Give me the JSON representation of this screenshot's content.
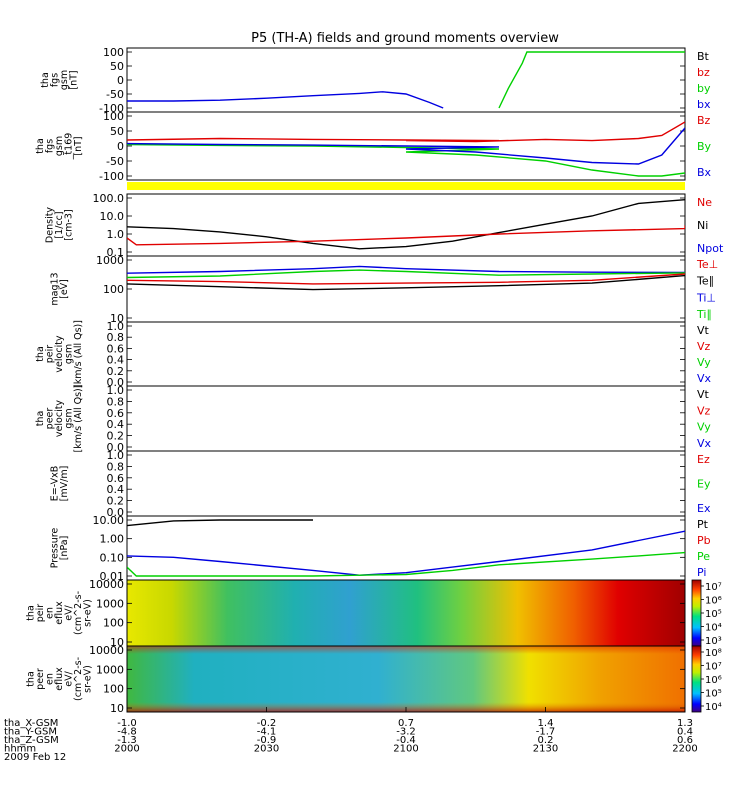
{
  "title": "P5 (TH-A) fields and ground moments overview",
  "date_label": "2009 Feb 12",
  "orbit_rows": [
    {
      "label": "tha_X-GSM",
      "values": [
        "-1.0",
        "-0.2",
        "0.7",
        "1.4",
        "1.3"
      ]
    },
    {
      "label": "tha_Y-GSM",
      "values": [
        "-4.8",
        "-4.1",
        "-3.2",
        "-1.7",
        "0.4"
      ]
    },
    {
      "label": "tha_Z-GSM",
      "values": [
        "-1.3",
        "-0.9",
        "-0.4",
        "0.2",
        "0.6"
      ]
    },
    {
      "label": "hhmm",
      "values": [
        "2000",
        "2030",
        "2100",
        "2130",
        "2200"
      ]
    }
  ],
  "colors": {
    "black": "#000000",
    "red": "#e00000",
    "green": "#00d000",
    "blue": "#0000e0",
    "yellow": "#ffff00"
  },
  "chart_data": [
    {
      "id": "fgs",
      "type": "line",
      "ylabel": [
        "tha",
        "fgs",
        "gsm",
        "[nT]"
      ],
      "ticks": [
        "100",
        "50",
        "0",
        "-50",
        "-100"
      ],
      "ylim": [
        -100,
        100
      ],
      "legend": [
        {
          "text": "Bt",
          "color": "#000000"
        },
        {
          "text": "bz",
          "color": "#e00000"
        },
        {
          "text": "by",
          "color": "#00d000"
        },
        {
          "text": "bx",
          "color": "#0000e0"
        }
      ],
      "series": [
        {
          "name": "bx",
          "color": "#0000e0",
          "x": [
            2000,
            2010,
            2020,
            2030,
            2040,
            2050,
            2055,
            2100,
            2105,
            2108
          ],
          "y": [
            -75,
            -75,
            -72,
            -65,
            -56,
            -48,
            -42,
            -50,
            -80,
            -100
          ]
        },
        {
          "name": "by",
          "color": "#00d000",
          "x": [
            2120,
            2122,
            2125,
            2126,
            2200
          ],
          "y": [
            -100,
            -30,
            60,
            100,
            100
          ]
        }
      ]
    },
    {
      "id": "fgs_gsm",
      "type": "line",
      "ylabel": [
        "tha",
        "fgs",
        "gsm",
        "_t169",
        "[nT]"
      ],
      "ticks": [
        "100",
        "50",
        "0",
        "-50",
        "-100"
      ],
      "ylim": [
        -100,
        100
      ],
      "legend": [
        {
          "text": "Bz",
          "color": "#e00000"
        },
        {
          "text": "By",
          "color": "#00d000"
        },
        {
          "text": "Bx",
          "color": "#0000e0"
        }
      ],
      "series": [
        {
          "name": "Bz",
          "color": "#e00000",
          "x": [
            2000,
            2020,
            2040,
            2060,
            2080,
            2100,
            2115,
            2130,
            2140,
            2150,
            2155,
            2200
          ],
          "y": [
            20,
            25,
            22,
            20,
            18,
            18,
            15,
            22,
            18,
            25,
            35,
            80
          ]
        },
        {
          "name": "By",
          "color": "#00d000",
          "x": [
            2000,
            2020,
            2040,
            2060,
            2080,
            2100,
            2115,
            2130,
            2140,
            2150,
            2155,
            2200
          ],
          "y": [
            5,
            2,
            0,
            -5,
            -10,
            -20,
            -30,
            -50,
            -80,
            -100,
            -100,
            -90
          ]
        },
        {
          "name": "Bx",
          "color": "#0000e0",
          "x": [
            2000,
            2020,
            2040,
            2060,
            2080,
            2100,
            2115,
            2130,
            2140,
            2150,
            2155,
            2200
          ],
          "y": [
            8,
            5,
            3,
            0,
            -3,
            -10,
            -20,
            -40,
            -55,
            -60,
            -30,
            60
          ]
        }
      ]
    },
    {
      "id": "density",
      "type": "line",
      "ylog": true,
      "ylabel": [
        "Density",
        "[1/cc]",
        "[cm-3]"
      ],
      "ticks": [
        "100.0",
        "10.0",
        "1.0",
        "0.1"
      ],
      "ylim": [
        0.1,
        100
      ],
      "legend": [
        {
          "text": "Ne",
          "color": "#e00000"
        },
        {
          "text": "Ni",
          "color": "#000000"
        },
        {
          "text": "Npot",
          "color": "#0000e0"
        }
      ],
      "series": [
        {
          "name": "Ni",
          "color": "#000000",
          "x": [
            2000,
            2010,
            2020,
            2030,
            2040,
            2050,
            2100,
            2110,
            2120,
            2130,
            2140,
            2150,
            2200
          ],
          "y": [
            2.5,
            2.0,
            1.3,
            0.7,
            0.3,
            0.15,
            0.2,
            0.4,
            1.2,
            3.5,
            10,
            50,
            80
          ]
        },
        {
          "name": "Ne",
          "color": "#e00000",
          "x": [
            2000,
            2002,
            2020,
            2040,
            2100,
            2120,
            2140,
            2160,
            2200
          ],
          "y": [
            0.6,
            0.25,
            0.3,
            0.4,
            0.6,
            1.0,
            1.5,
            2.0,
            3.0
          ]
        }
      ]
    },
    {
      "id": "temperature",
      "type": "line",
      "ylog": true,
      "ylabel": [
        "mag13",
        "[eV]"
      ],
      "ticks": [
        "1000",
        "100",
        "10"
      ],
      "ylim": [
        10,
        1000
      ],
      "legend": [
        {
          "text": "Te⊥",
          "color": "#e00000"
        },
        {
          "text": "Te∥",
          "color": "#000000"
        },
        {
          "text": "Ti⊥",
          "color": "#0000e0"
        },
        {
          "text": "Ti∥",
          "color": "#00d000"
        }
      ],
      "series": [
        {
          "name": "Ti⊥",
          "color": "#0000e0",
          "x": [
            2000,
            2020,
            2040,
            2050,
            2100,
            2120,
            2140,
            2200
          ],
          "y": [
            350,
            400,
            500,
            600,
            500,
            400,
            380,
            370
          ]
        },
        {
          "name": "Ti∥",
          "color": "#00d000",
          "x": [
            2000,
            2020,
            2040,
            2050,
            2100,
            2120,
            2140,
            2200
          ],
          "y": [
            250,
            280,
            400,
            450,
            400,
            300,
            330,
            360
          ]
        },
        {
          "name": "Te⊥",
          "color": "#e00000",
          "x": [
            2000,
            2020,
            2040,
            2100,
            2120,
            2140,
            2200
          ],
          "y": [
            200,
            180,
            150,
            160,
            170,
            200,
            330
          ]
        },
        {
          "name": "Te∥",
          "color": "#000000",
          "x": [
            2000,
            2020,
            2040,
            2100,
            2120,
            2140,
            2200
          ],
          "y": [
            150,
            120,
            95,
            110,
            130,
            160,
            290
          ]
        }
      ]
    },
    {
      "id": "peir_velocity",
      "type": "line",
      "ylabel": [
        "tha",
        "peir",
        "velocity",
        "gsm",
        "[km/s (All Qs)]"
      ],
      "ticks": [
        "1.0",
        "0.8",
        "0.6",
        "0.4",
        "0.2",
        "0.0"
      ],
      "ylim": [
        0,
        1
      ],
      "legend": [
        {
          "text": "Vt",
          "color": "#000000"
        },
        {
          "text": "Vz",
          "color": "#e00000"
        },
        {
          "text": "Vy",
          "color": "#00d000"
        },
        {
          "text": "Vx",
          "color": "#0000e0"
        }
      ],
      "series": []
    },
    {
      "id": "peer_velocity",
      "type": "line",
      "ylabel": [
        "tha",
        "peer",
        "velocity",
        "gsm",
        "[km/s (All Qs)]"
      ],
      "ticks": [
        "1.0",
        "0.8",
        "0.6",
        "0.4",
        "0.2",
        "0.0"
      ],
      "ylim": [
        0,
        1
      ],
      "legend": [
        {
          "text": "Vt",
          "color": "#000000"
        },
        {
          "text": "Vz",
          "color": "#e00000"
        },
        {
          "text": "Vy",
          "color": "#00d000"
        },
        {
          "text": "Vx",
          "color": "#0000e0"
        }
      ],
      "series": []
    },
    {
      "id": "efield",
      "type": "line",
      "ylabel": [
        "E=-VxB",
        "[mV/m]"
      ],
      "ticks": [
        "1.0",
        "0.8",
        "0.6",
        "0.4",
        "0.2",
        "0.0"
      ],
      "ylim": [
        0,
        1
      ],
      "legend": [
        {
          "text": "Ez",
          "color": "#e00000"
        },
        {
          "text": "Ey",
          "color": "#00d000"
        },
        {
          "text": "Ex",
          "color": "#0000e0"
        }
      ],
      "series": []
    },
    {
      "id": "pressure",
      "type": "line",
      "ylog": true,
      "ylabel": [
        "Pressure",
        "[nPa]"
      ],
      "ticks": [
        "10.00",
        "1.00",
        "0.10",
        "0.01"
      ],
      "ylim": [
        0.01,
        10
      ],
      "legend": [
        {
          "text": "Pt",
          "color": "#000000"
        },
        {
          "text": "Pb",
          "color": "#e00000"
        },
        {
          "text": "Pe",
          "color": "#00d000"
        },
        {
          "text": "Pi",
          "color": "#0000e0"
        }
      ],
      "series": [
        {
          "name": "Pt",
          "color": "#000000",
          "x": [
            2000,
            2010,
            2020,
            2030,
            2040
          ],
          "y": [
            5,
            9,
            11,
            12,
            12
          ]
        },
        {
          "name": "Pi",
          "color": "#0000e0",
          "x": [
            2000,
            2010,
            2020,
            2040,
            2050,
            2100,
            2110,
            2120,
            2140,
            2150,
            2200
          ],
          "y": [
            0.12,
            0.1,
            0.06,
            0.02,
            0.011,
            0.015,
            0.03,
            0.06,
            0.25,
            0.8,
            2.5
          ]
        },
        {
          "name": "Pe",
          "color": "#00d000",
          "x": [
            2000,
            2002,
            2010,
            2040,
            2050,
            2100,
            2110,
            2120,
            2140,
            2150,
            2200
          ],
          "y": [
            0.03,
            0.01,
            0.01,
            0.01,
            0.011,
            0.012,
            0.02,
            0.04,
            0.08,
            0.12,
            0.18
          ]
        }
      ]
    },
    {
      "id": "peir_spec",
      "type": "heatmap",
      "ylabel": [
        "tha",
        "peir",
        "en",
        "eflux",
        "eV/",
        "(cm^2-s-",
        "sr-eV)"
      ],
      "ticks": [
        "10000",
        "1000",
        "100",
        "10"
      ],
      "colorbar": [
        "10⁷",
        "10⁶",
        "10⁵",
        "10⁴",
        "10³"
      ],
      "colorbar_range_exp": [
        2.5,
        7.2
      ]
    },
    {
      "id": "peer_spec",
      "type": "heatmap",
      "ylabel": [
        "tha",
        "peer",
        "en",
        "eflux",
        "eV/",
        "(cm^2-s-",
        "sr-eV)"
      ],
      "ticks": [
        "10000",
        "1000",
        "100",
        "10"
      ],
      "colorbar": [
        "10⁸",
        "10⁷",
        "10⁶",
        "10⁵",
        "10⁴"
      ],
      "colorbar_range_exp": [
        3.5,
        8.3
      ]
    }
  ]
}
